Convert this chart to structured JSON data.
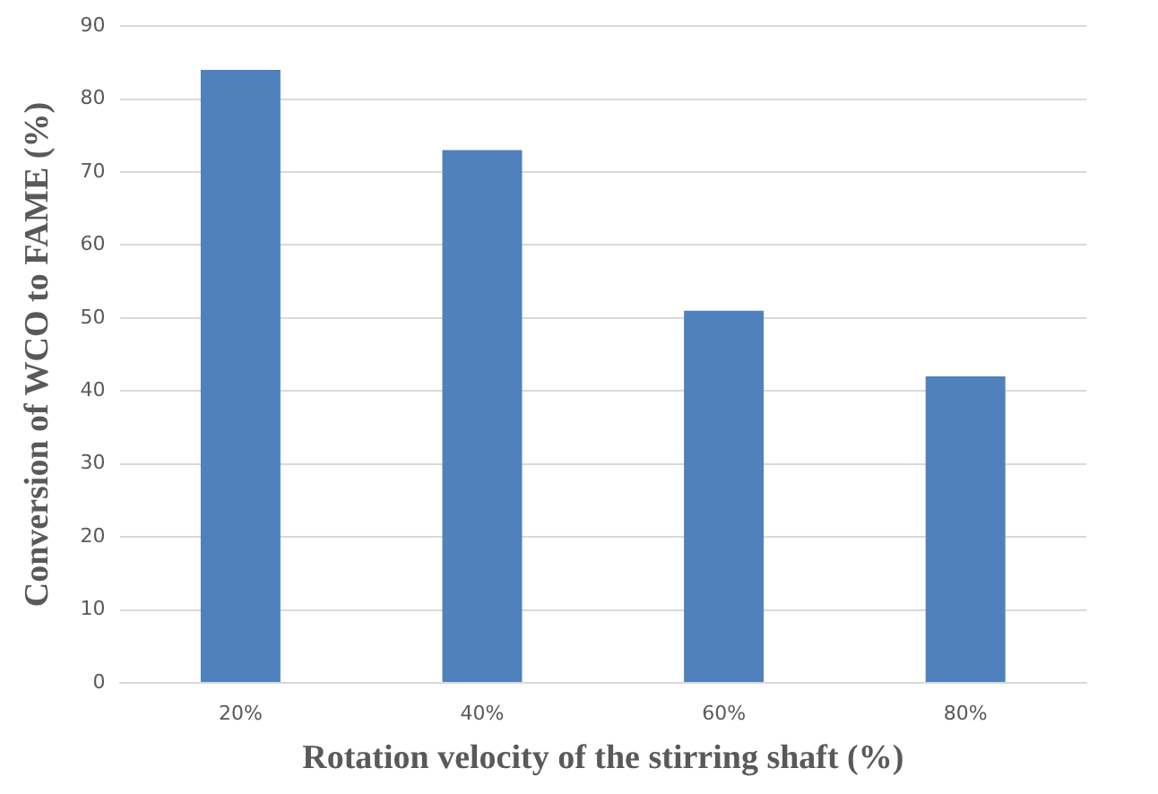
{
  "chart_data": {
    "type": "bar",
    "xlabel": "Rotation velocity of the stirring shaft (%)",
    "ylabel": "Conversion of WCO to FAME (%)",
    "categories": [
      "20%",
      "40%",
      "60%",
      "80%"
    ],
    "values": [
      84,
      73,
      51,
      42
    ],
    "color": "#4f81bd",
    "ylim": [
      0,
      90
    ],
    "yticks": [
      0,
      10,
      20,
      30,
      40,
      50,
      60,
      70,
      80,
      90
    ],
    "grid": "y",
    "legend": false
  }
}
